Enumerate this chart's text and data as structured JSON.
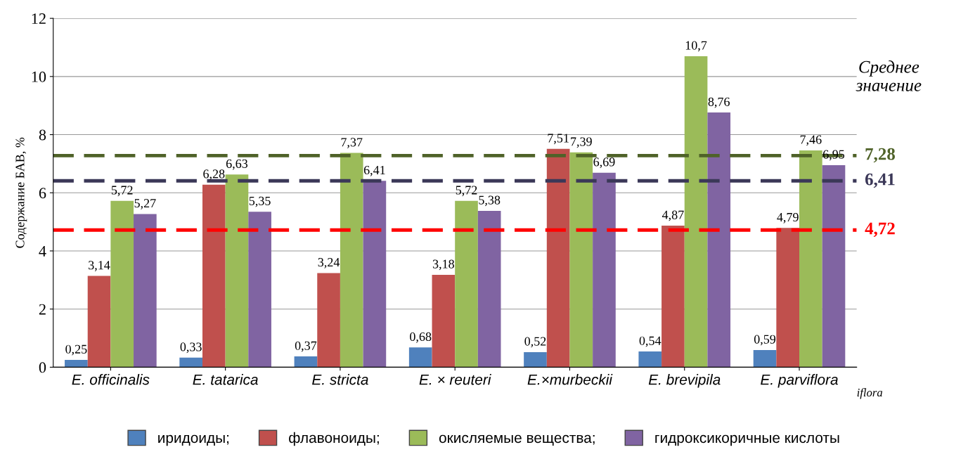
{
  "chart_data": {
    "type": "bar",
    "ylabel": "Содержание БАВ, %",
    "categories": [
      "E. officinalis",
      "E. tatarica",
      "E. stricta",
      "E. × reuteri",
      "E.×murbeckii",
      "E. brevipila",
      "E. parviflora"
    ],
    "series": [
      {
        "name": "иридоиды;",
        "color": "#4f81bd",
        "values": [
          0.25,
          0.33,
          0.37,
          0.68,
          0.52,
          0.54,
          0.59
        ],
        "value_labels": [
          "0,25",
          "0,33",
          "0,37",
          "0,68",
          "0,52",
          "0,54",
          "0,59"
        ]
      },
      {
        "name": "флавоноиды;",
        "color": "#c0504d",
        "values": [
          3.14,
          6.28,
          3.24,
          3.18,
          7.51,
          4.87,
          4.79
        ],
        "value_labels": [
          "3,14",
          "6,28",
          "3,24",
          "3,18",
          "7,51",
          "4,87",
          "4,79"
        ]
      },
      {
        "name": "окисляемые вещества;",
        "color": "#9bbb59",
        "values": [
          5.72,
          6.63,
          7.37,
          5.72,
          7.39,
          10.7,
          7.46
        ],
        "value_labels": [
          "5,72",
          "6,63",
          "7,37",
          "5,72",
          "7,39",
          "10,7",
          "7,46"
        ]
      },
      {
        "name": "гидроксикоричные кислоты",
        "color": "#8064a2",
        "values": [
          5.27,
          5.35,
          6.41,
          5.38,
          6.69,
          8.76,
          6.95
        ],
        "value_labels": [
          "5,27",
          "5,35",
          "6,41",
          "5,38",
          "6,69",
          "8,76",
          "6,95"
        ]
      }
    ],
    "ylim": [
      0,
      12
    ],
    "yticks": [
      0,
      2,
      4,
      6,
      8,
      10,
      12
    ],
    "grid": "y",
    "legend": "bottom",
    "ref_lines": [
      {
        "axis": "y",
        "value": 7.28,
        "label": "7,28",
        "color": "#4f6228",
        "line_style": "dashed"
      },
      {
        "axis": "y",
        "value": 6.41,
        "label": "6,41",
        "color": "#3b3858",
        "line_style": "dashed"
      },
      {
        "axis": "y",
        "value": 4.72,
        "label": "4,72",
        "color": "#ff0000",
        "line_style": "dashed"
      }
    ],
    "annotations": [
      "Среднее значение",
      "iflora"
    ]
  }
}
